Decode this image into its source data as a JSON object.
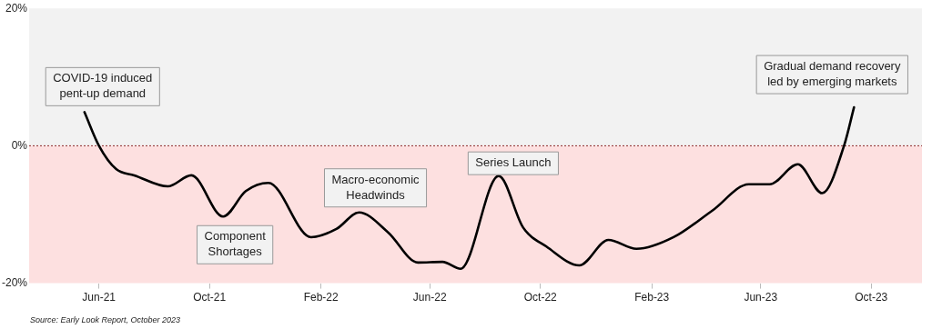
{
  "chart_data": {
    "type": "line",
    "x": [
      "2021-05-16",
      "2021-06-01",
      "2021-06-20",
      "2021-07-10",
      "2021-08-16",
      "2021-09-11",
      "2021-10-16",
      "2021-11-10",
      "2021-12-05",
      "2022-01-21",
      "2022-02-18",
      "2022-03-15",
      "2022-04-16",
      "2022-05-19",
      "2022-06-15",
      "2022-07-05",
      "2022-08-16",
      "2022-09-12",
      "2022-10-08",
      "2022-11-13",
      "2022-12-15",
      "2023-01-15",
      "2023-02-25",
      "2023-04-09",
      "2023-05-19",
      "2023-06-11",
      "2023-07-12",
      "2023-08-08",
      "2023-09-01",
      "2023-09-12"
    ],
    "series": [
      {
        "color": "#000000",
        "values": [
          4.9,
          0,
          -3.4,
          -4.3,
          -5.9,
          -4.3,
          -10.3,
          -6.6,
          -5.4,
          -13.3,
          -12.1,
          -9.7,
          -12.6,
          -17,
          -16.9,
          -17.9,
          -4.4,
          -11.9,
          -14.7,
          -17.4,
          -13.7,
          -15,
          -13.3,
          -9.4,
          -5.6,
          -5.6,
          -2.7,
          -6.9,
          0,
          5.6
        ]
      }
    ],
    "xlim": [
      "2021-03-16",
      "2023-11-26"
    ],
    "xticks": [
      {
        "value": "2021-06-01",
        "label": "Jun-21"
      },
      {
        "value": "2021-10-01",
        "label": "Oct-21"
      },
      {
        "value": "2022-02-01",
        "label": "Feb-22"
      },
      {
        "value": "2022-06-01",
        "label": "Jun-22"
      },
      {
        "value": "2022-10-01",
        "label": "Oct-22"
      },
      {
        "value": "2023-02-01",
        "label": "Feb-23"
      },
      {
        "value": "2023-06-01",
        "label": "Jun-23"
      },
      {
        "value": "2023-10-01",
        "label": "Oct-23"
      }
    ],
    "ylim": [
      -20,
      20
    ],
    "yticks": [
      {
        "value": -20,
        "label": "-20%"
      },
      {
        "value": 0,
        "label": "0%"
      },
      {
        "value": 20,
        "label": "20%"
      }
    ],
    "bands": [
      {
        "axis": "y",
        "from": 0,
        "to": 20,
        "color": "#f2f2f2"
      },
      {
        "axis": "y",
        "from": -20,
        "to": 0,
        "color": "#fde0e0"
      }
    ],
    "ref_lines": [
      {
        "axis": "y",
        "value": 0,
        "color": "#8b2a2a",
        "line_style": "dotted"
      }
    ],
    "marker": "none",
    "line_style": "solid",
    "legend": false,
    "annotations": [
      {
        "text": "COVID-19 induced\npent-up demand",
        "x": "2021-05-16",
        "y": 4.9
      },
      {
        "text": "Component\nShortages",
        "x": "2021-10-16",
        "y": -10.3
      },
      {
        "text": "Macro-economic\nHeadwinds",
        "x": "2022-03-15",
        "y": -9.7
      },
      {
        "text": "Series Launch",
        "x": "2022-08-16",
        "y": -4.4
      },
      {
        "text": "Gradual demand recovery\nled by emerging markets",
        "x": "2023-09-12",
        "y": 5.6
      },
      "Source: Early Look Report, October 2023"
    ]
  }
}
